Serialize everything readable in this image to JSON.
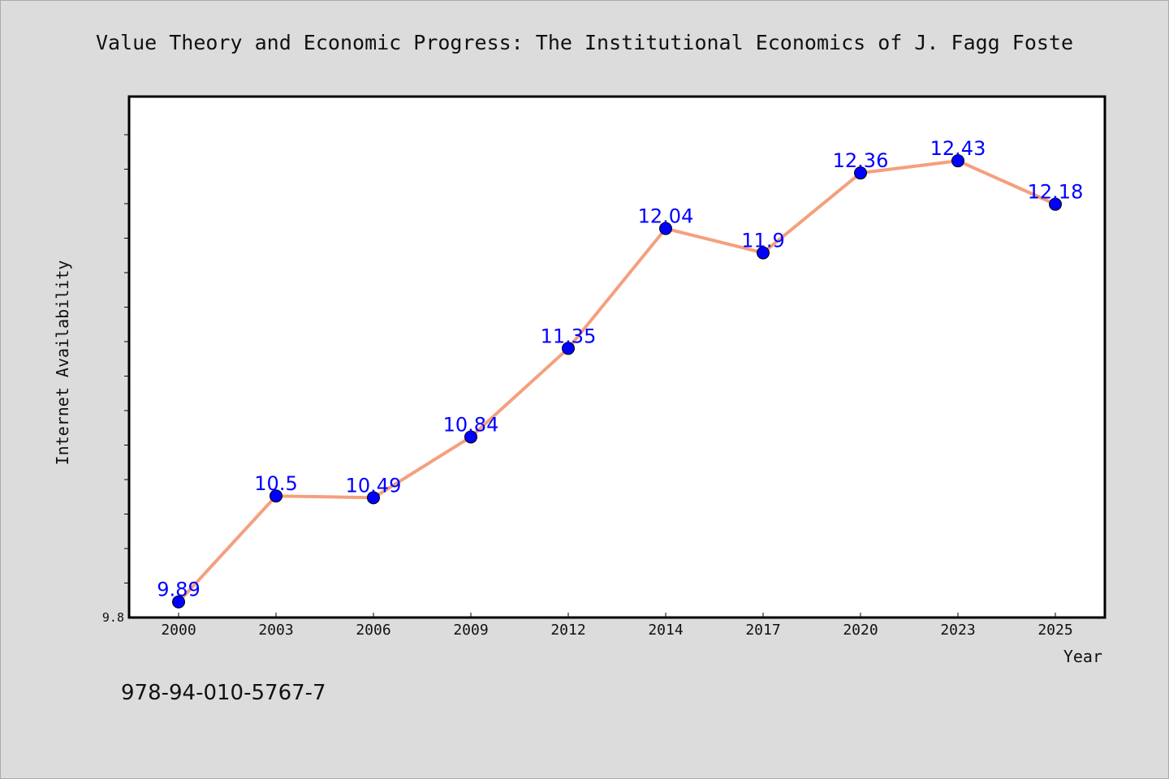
{
  "chart_data": {
    "type": "line",
    "title": "Value Theory and Economic Progress: The Institutional Economics of J. Fagg Foste",
    "xlabel": "Year",
    "ylabel": "Internet Availability",
    "categories": [
      "2000",
      "2003",
      "2006",
      "2009",
      "2012",
      "2014",
      "2017",
      "2020",
      "2023",
      "2025"
    ],
    "series": [
      {
        "values": [
          9.89,
          10.5,
          10.49,
          10.84,
          11.35,
          12.04,
          11.9,
          12.36,
          12.43,
          12.18
        ],
        "labels": [
          "9.89",
          "10.5",
          "10.49",
          "10.84",
          "11.35",
          "12.04",
          "11.9",
          "12.36",
          "12.43",
          "12.18"
        ]
      }
    ],
    "ylim": [
      9.8,
      12.8
    ],
    "y_tick_label": "9.8",
    "line_color": "#f4a07e",
    "marker_color": "#0000ff",
    "label_color": "#0000ff",
    "grid": false
  },
  "footer": {
    "isbn": "978-94-010-5767-7"
  }
}
